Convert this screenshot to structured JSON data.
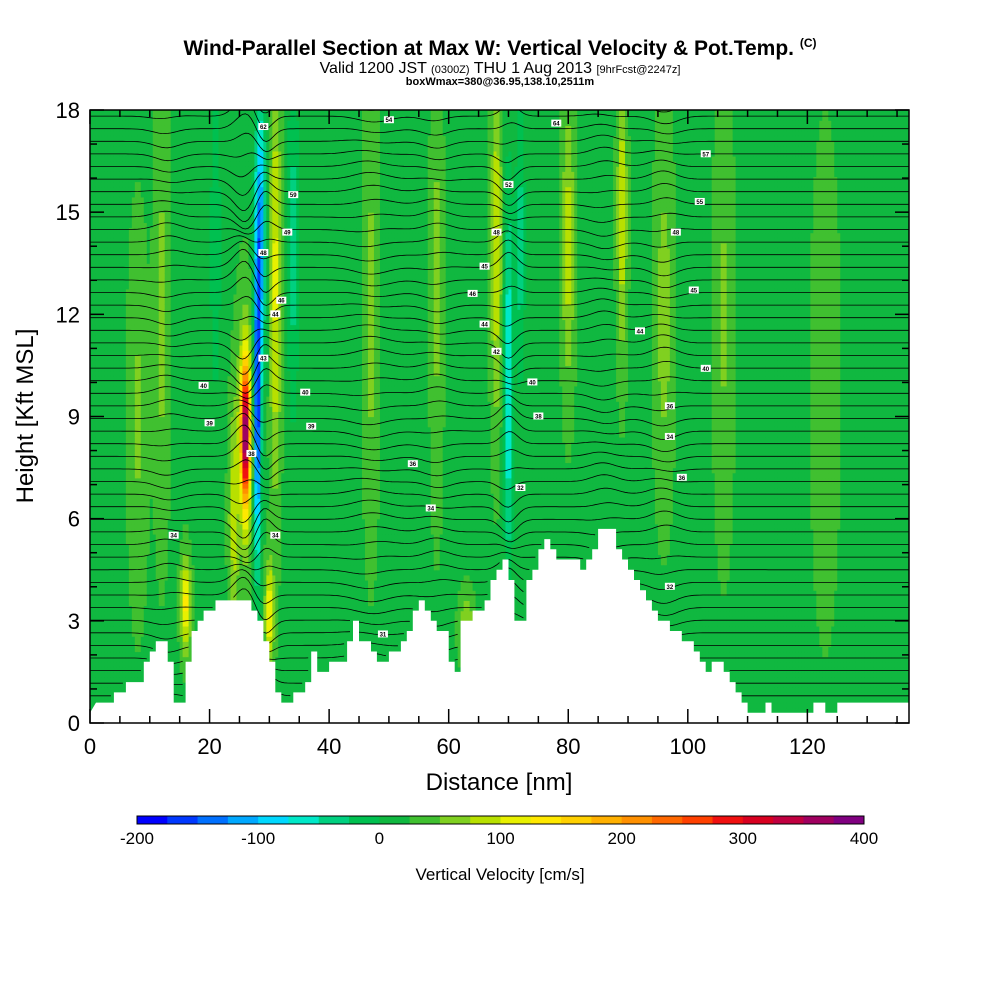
{
  "header": {
    "title": "Wind-Parallel Section at Max W: Vertical Velocity & Pot.Temp.",
    "copyright": "(C)",
    "valid_prefix": "Valid 1200 JST",
    "valid_utc": "(0300Z)",
    "valid_date": "THU 1 Aug 2013",
    "forecast": "[9hrFcst@2247z]",
    "box_info": "boxWmax=380@36.95,138.10,2511m"
  },
  "chart_data": {
    "type": "heatmap",
    "xlabel": "Distance [nm]",
    "ylabel": "Height [Kft MSL]",
    "xlim": [
      0,
      137
    ],
    "ylim": [
      0,
      18
    ],
    "x_ticks": [
      0,
      20,
      40,
      60,
      80,
      100,
      120
    ],
    "y_ticks": [
      0,
      3,
      6,
      9,
      12,
      15,
      18
    ],
    "colorbar": {
      "label": "Vertical Velocity [cm/s]",
      "min": -200,
      "max": 400,
      "step": 25,
      "ticks": [
        -200,
        -100,
        0,
        100,
        200,
        300,
        400
      ],
      "colors": [
        "#0000ff",
        "#0038ff",
        "#0070ff",
        "#00a8ff",
        "#00d8ff",
        "#00e8c8",
        "#00d080",
        "#00c050",
        "#10b840",
        "#40c030",
        "#80d020",
        "#b8e000",
        "#e8f000",
        "#ffe800",
        "#ffd000",
        "#ffb000",
        "#ff9000",
        "#ff6800",
        "#ff4000",
        "#f01010",
        "#d80020",
        "#c00040",
        "#a00060",
        "#800080"
      ]
    },
    "background_w": 20,
    "terrain": [
      [
        0,
        0.3
      ],
      [
        1,
        0.6
      ],
      [
        4,
        0.6
      ],
      [
        4,
        0.9
      ],
      [
        6,
        0.9
      ],
      [
        6,
        1.2
      ],
      [
        9,
        1.2
      ],
      [
        9,
        1.8
      ],
      [
        10,
        1.8
      ],
      [
        10,
        2.1
      ],
      [
        11,
        2.1
      ],
      [
        11,
        2.4
      ],
      [
        13,
        2.4
      ],
      [
        13,
        1.8
      ],
      [
        14,
        1.8
      ],
      [
        14,
        0.6
      ],
      [
        16,
        0.6
      ],
      [
        16,
        1.8
      ],
      [
        17,
        1.8
      ],
      [
        17,
        2.7
      ],
      [
        18,
        2.7
      ],
      [
        18,
        3.0
      ],
      [
        19,
        3.0
      ],
      [
        19,
        3.3
      ],
      [
        21,
        3.3
      ],
      [
        21,
        3.6
      ],
      [
        27,
        3.6
      ],
      [
        27,
        3.3
      ],
      [
        28,
        3.3
      ],
      [
        28,
        3.0
      ],
      [
        29,
        3.0
      ],
      [
        29,
        2.4
      ],
      [
        30,
        2.4
      ],
      [
        30,
        1.8
      ],
      [
        31,
        1.8
      ],
      [
        31,
        0.9
      ],
      [
        32,
        0.9
      ],
      [
        32,
        0.6
      ],
      [
        34,
        0.6
      ],
      [
        34,
        0.9
      ],
      [
        36,
        0.9
      ],
      [
        36,
        1.2
      ],
      [
        37,
        1.2
      ],
      [
        37,
        2.1
      ],
      [
        38,
        2.1
      ],
      [
        38,
        1.5
      ],
      [
        40,
        1.5
      ],
      [
        40,
        1.8
      ],
      [
        43,
        1.8
      ],
      [
        43,
        2.4
      ],
      [
        44,
        2.4
      ],
      [
        44,
        3.0
      ],
      [
        45,
        3.0
      ],
      [
        45,
        2.4
      ],
      [
        47,
        2.4
      ],
      [
        47,
        2.1
      ],
      [
        48,
        2.1
      ],
      [
        48,
        1.8
      ],
      [
        50,
        1.8
      ],
      [
        50,
        2.1
      ],
      [
        52,
        2.1
      ],
      [
        52,
        2.4
      ],
      [
        53,
        2.4
      ],
      [
        53,
        2.7
      ],
      [
        54,
        2.7
      ],
      [
        54,
        3.3
      ],
      [
        55,
        3.3
      ],
      [
        55,
        3.6
      ],
      [
        56,
        3.6
      ],
      [
        56,
        3.3
      ],
      [
        57,
        3.3
      ],
      [
        57,
        3.0
      ],
      [
        58,
        3.0
      ],
      [
        58,
        2.7
      ],
      [
        60,
        2.7
      ],
      [
        60,
        1.8
      ],
      [
        61,
        1.8
      ],
      [
        61,
        1.5
      ],
      [
        62,
        1.5
      ],
      [
        62,
        3.0
      ],
      [
        64,
        3.0
      ],
      [
        64,
        3.3
      ],
      [
        66,
        3.3
      ],
      [
        66,
        3.6
      ],
      [
        67,
        3.6
      ],
      [
        67,
        4.2
      ],
      [
        68,
        4.2
      ],
      [
        68,
        4.5
      ],
      [
        69,
        4.5
      ],
      [
        69,
        4.8
      ],
      [
        70,
        4.8
      ],
      [
        70,
        4.2
      ],
      [
        71,
        4.2
      ],
      [
        71,
        3.0
      ],
      [
        73,
        3.0
      ],
      [
        73,
        4.2
      ],
      [
        74,
        4.2
      ],
      [
        74,
        4.5
      ],
      [
        75,
        4.5
      ],
      [
        75,
        5.1
      ],
      [
        76,
        5.1
      ],
      [
        76,
        5.4
      ],
      [
        77,
        5.4
      ],
      [
        77,
        5.1
      ],
      [
        78,
        5.1
      ],
      [
        78,
        4.8
      ],
      [
        82,
        4.8
      ],
      [
        82,
        4.5
      ],
      [
        83,
        4.5
      ],
      [
        83,
        4.8
      ],
      [
        84,
        4.8
      ],
      [
        84,
        5.1
      ],
      [
        85,
        5.1
      ],
      [
        85,
        5.7
      ],
      [
        88,
        5.7
      ],
      [
        88,
        5.1
      ],
      [
        89,
        5.1
      ],
      [
        89,
        4.8
      ],
      [
        90,
        4.8
      ],
      [
        90,
        4.5
      ],
      [
        91,
        4.5
      ],
      [
        91,
        4.2
      ],
      [
        92,
        4.2
      ],
      [
        92,
        3.9
      ],
      [
        93,
        3.9
      ],
      [
        93,
        3.6
      ],
      [
        94,
        3.6
      ],
      [
        94,
        3.3
      ],
      [
        95,
        3.3
      ],
      [
        95,
        3.0
      ],
      [
        97,
        3.0
      ],
      [
        97,
        2.7
      ],
      [
        99,
        2.7
      ],
      [
        99,
        2.4
      ],
      [
        101,
        2.4
      ],
      [
        101,
        2.1
      ],
      [
        102,
        2.1
      ],
      [
        102,
        1.8
      ],
      [
        103,
        1.8
      ],
      [
        103,
        1.5
      ],
      [
        104,
        1.5
      ],
      [
        104,
        1.8
      ],
      [
        106,
        1.8
      ],
      [
        106,
        1.5
      ],
      [
        107,
        1.5
      ],
      [
        107,
        1.2
      ],
      [
        108,
        1.2
      ],
      [
        108,
        0.9
      ],
      [
        109,
        0.9
      ],
      [
        109,
        0.6
      ],
      [
        110,
        0.6
      ],
      [
        110,
        0.3
      ],
      [
        113,
        0.3
      ],
      [
        113,
        0.6
      ],
      [
        114,
        0.6
      ],
      [
        114,
        0.3
      ],
      [
        121,
        0.3
      ],
      [
        121,
        0.6
      ],
      [
        123,
        0.6
      ],
      [
        123,
        0.3
      ],
      [
        125,
        0.3
      ],
      [
        125,
        0.6
      ],
      [
        137,
        0.6
      ]
    ],
    "w_features": [
      {
        "x": 26,
        "z": 8.5,
        "w": 310,
        "sx": 0.7,
        "sz": 2.0
      },
      {
        "x": 26,
        "z": 8.5,
        "w": 80,
        "sx": 1.4,
        "sz": 3.5
      },
      {
        "x": 28,
        "z": 9.0,
        "w": -190,
        "sx": 0.6,
        "sz": 4.5
      },
      {
        "x": 28.5,
        "z": 14.5,
        "w": -140,
        "sx": 0.9,
        "sz": 4.0
      },
      {
        "x": 31,
        "z": 13,
        "w": 90,
        "sx": 0.9,
        "sz": 6.0
      },
      {
        "x": 24,
        "z": 6,
        "w": 70,
        "sx": 0.8,
        "sz": 3.0
      },
      {
        "x": 16,
        "z": 3.5,
        "w": 120,
        "sx": 0.8,
        "sz": 1.3
      },
      {
        "x": 30,
        "z": 3.2,
        "w": 110,
        "sx": 0.7,
        "sz": 1.5
      },
      {
        "x": 34,
        "z": 14,
        "w": -60,
        "sx": 1.0,
        "sz": 5.0
      },
      {
        "x": 70,
        "z": 10,
        "w": -100,
        "sx": 0.8,
        "sz": 5.5
      },
      {
        "x": 72,
        "z": 14,
        "w": -60,
        "sx": 0.8,
        "sz": 4.0
      },
      {
        "x": 68,
        "z": 14,
        "w": 80,
        "sx": 0.9,
        "sz": 5.0
      },
      {
        "x": 80,
        "z": 14,
        "w": 70,
        "sx": 1.0,
        "sz": 4.0
      },
      {
        "x": 89,
        "z": 15,
        "w": 80,
        "sx": 0.8,
        "sz": 4.0
      },
      {
        "x": 47,
        "z": 12,
        "w": 40,
        "sx": 1.2,
        "sz": 6.0
      },
      {
        "x": 58,
        "z": 13,
        "w": 40,
        "sx": 1.0,
        "sz": 6.0
      },
      {
        "x": 96,
        "z": 12,
        "w": 45,
        "sx": 1.5,
        "sz": 5.0
      },
      {
        "x": 106,
        "z": 12,
        "w": 35,
        "sx": 1.5,
        "sz": 6.0
      },
      {
        "x": 12,
        "z": 12,
        "w": 40,
        "sx": 1.2,
        "sz": 6.0
      },
      {
        "x": 8,
        "z": 9,
        "w": 35,
        "sx": 1.5,
        "sz": 5.0
      },
      {
        "x": 123,
        "z": 10,
        "w": 30,
        "sx": 2.0,
        "sz": 6.0
      },
      {
        "x": 63,
        "z": 2.8,
        "w": 55,
        "sx": 1.2,
        "sz": 1.0
      },
      {
        "x": 21,
        "z": 14,
        "w": -40,
        "sx": 1.0,
        "sz": 5.0
      }
    ],
    "contour_labels": [
      {
        "x": 29,
        "z": 17.5,
        "text": "62"
      },
      {
        "x": 50,
        "z": 17.7,
        "text": "54"
      },
      {
        "x": 78,
        "z": 17.6,
        "text": "64"
      },
      {
        "x": 103,
        "z": 16.7,
        "text": "57"
      },
      {
        "x": 34,
        "z": 15.5,
        "text": "59"
      },
      {
        "x": 102,
        "z": 15.3,
        "text": "55"
      },
      {
        "x": 70,
        "z": 15.8,
        "text": "52"
      },
      {
        "x": 33,
        "z": 14.4,
        "text": "49"
      },
      {
        "x": 68,
        "z": 14.4,
        "text": "48"
      },
      {
        "x": 98,
        "z": 14.4,
        "text": "48"
      },
      {
        "x": 29,
        "z": 13.8,
        "text": "48"
      },
      {
        "x": 66,
        "z": 13.4,
        "text": "45"
      },
      {
        "x": 32,
        "z": 12.4,
        "text": "46"
      },
      {
        "x": 64,
        "z": 12.6,
        "text": "46"
      },
      {
        "x": 101,
        "z": 12.7,
        "text": "45"
      },
      {
        "x": 31,
        "z": 12.0,
        "text": "44"
      },
      {
        "x": 66,
        "z": 11.7,
        "text": "44"
      },
      {
        "x": 92,
        "z": 11.5,
        "text": "44"
      },
      {
        "x": 68,
        "z": 10.9,
        "text": "42"
      },
      {
        "x": 29,
        "z": 10.7,
        "text": "43"
      },
      {
        "x": 103,
        "z": 10.4,
        "text": "40"
      },
      {
        "x": 19,
        "z": 9.9,
        "text": "40"
      },
      {
        "x": 36,
        "z": 9.7,
        "text": "40"
      },
      {
        "x": 74,
        "z": 10.0,
        "text": "40"
      },
      {
        "x": 20,
        "z": 8.8,
        "text": "39"
      },
      {
        "x": 37,
        "z": 8.7,
        "text": "39"
      },
      {
        "x": 75,
        "z": 9.0,
        "text": "38"
      },
      {
        "x": 97,
        "z": 9.3,
        "text": "36"
      },
      {
        "x": 97,
        "z": 8.4,
        "text": "34"
      },
      {
        "x": 27,
        "z": 7.9,
        "text": "38"
      },
      {
        "x": 54,
        "z": 7.6,
        "text": "36"
      },
      {
        "x": 99,
        "z": 7.2,
        "text": "36"
      },
      {
        "x": 72,
        "z": 6.9,
        "text": "32"
      },
      {
        "x": 57,
        "z": 6.3,
        "text": "34"
      },
      {
        "x": 14,
        "z": 5.5,
        "text": "34"
      },
      {
        "x": 31,
        "z": 5.5,
        "text": "34"
      },
      {
        "x": 97,
        "z": 4.0,
        "text": "32"
      },
      {
        "x": 49,
        "z": 2.6,
        "text": "31"
      }
    ]
  }
}
